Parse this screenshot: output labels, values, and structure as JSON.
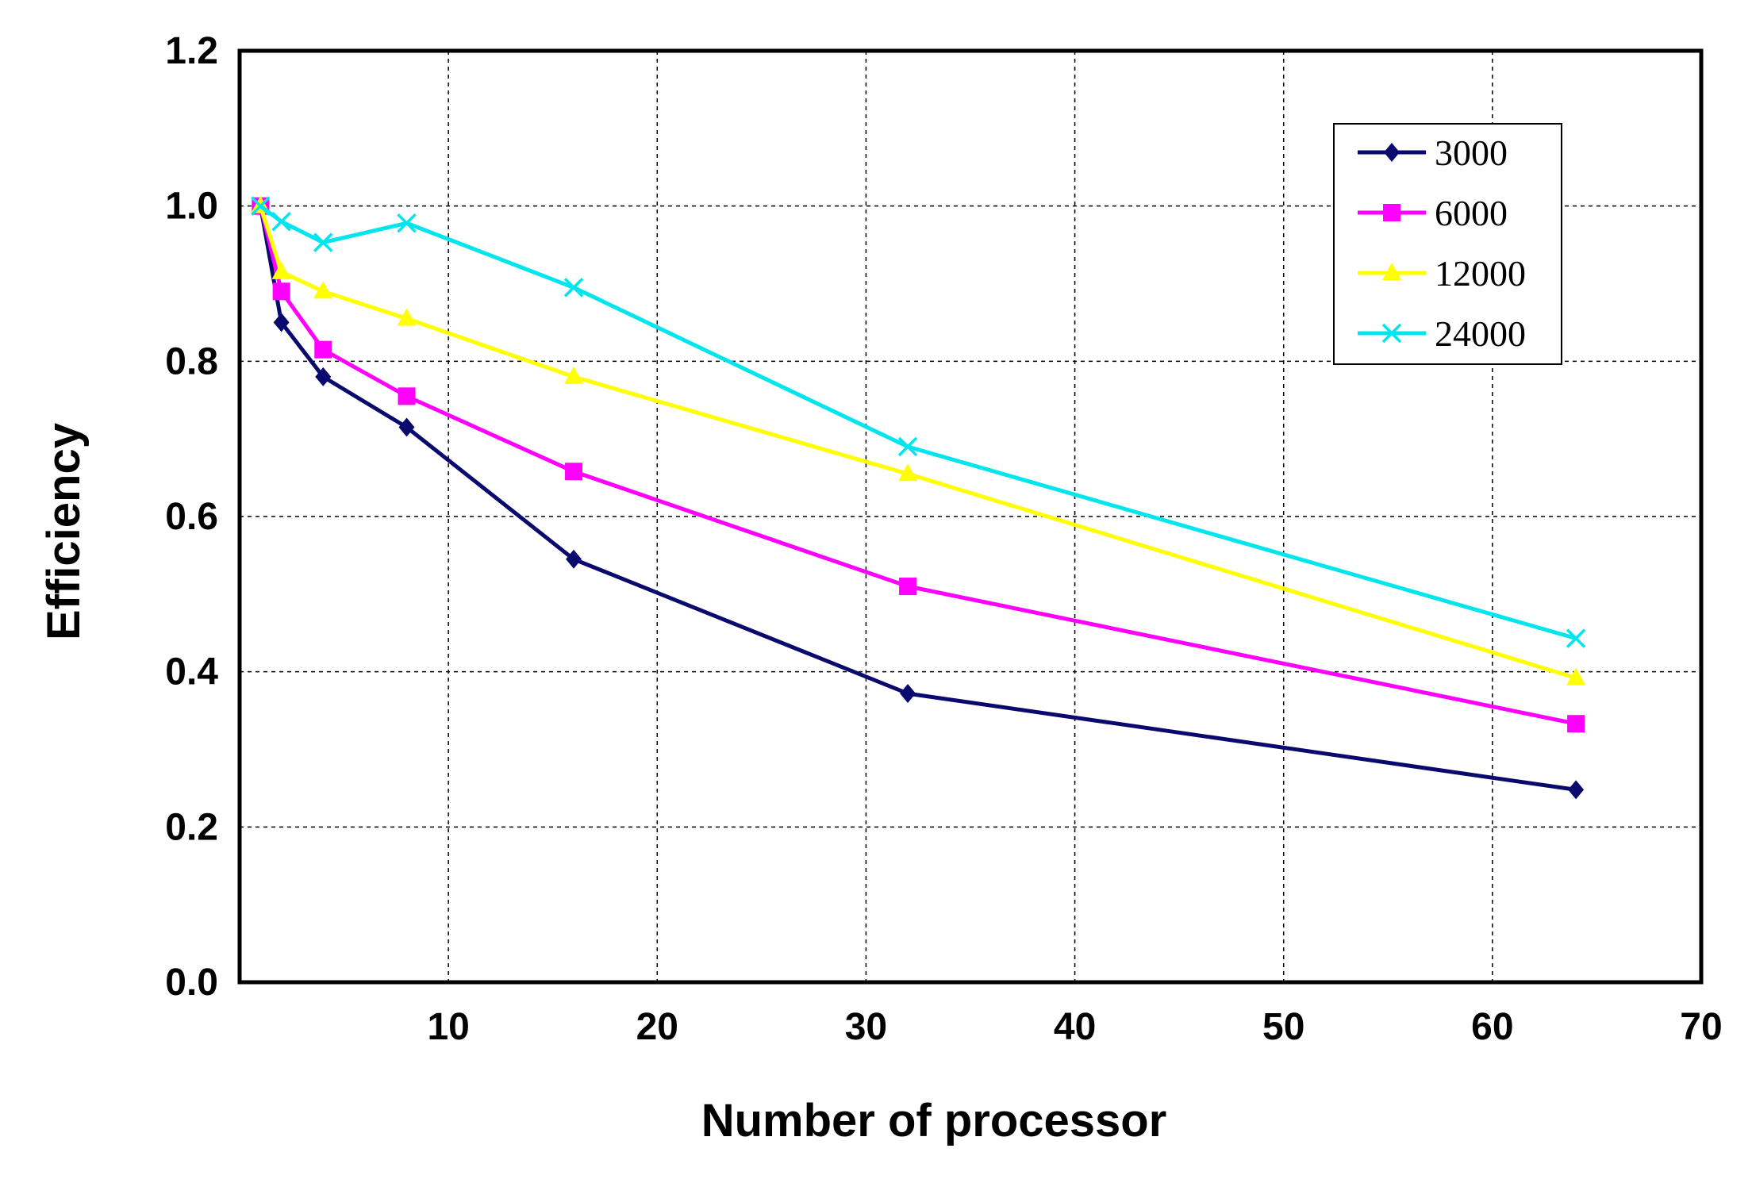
{
  "chart_data": {
    "type": "line",
    "title": "",
    "xlabel": "Number of processor",
    "ylabel": "Efficiency",
    "xlim": [
      0,
      70
    ],
    "ylim": [
      0,
      1.2
    ],
    "xticks": [
      10,
      20,
      30,
      40,
      50,
      60,
      70
    ],
    "xtick_labels": [
      "10",
      "20",
      "30",
      "40",
      "50",
      "60",
      "70"
    ],
    "yticks": [
      0,
      0.2,
      0.4,
      0.6,
      0.8,
      1.0,
      1.2
    ],
    "ytick_labels": [
      "0.0",
      "0.2",
      "0.4",
      "0.6",
      "0.8",
      "1.0",
      "1.2"
    ],
    "grid": true,
    "legend_position": "top-right",
    "x": [
      1,
      2,
      4,
      8,
      16,
      32,
      64
    ],
    "series": [
      {
        "name": "3000",
        "color": "#0a0a6e",
        "marker": "diamond",
        "values": [
          1.0,
          0.85,
          0.78,
          0.715,
          0.545,
          0.372,
          0.248
        ]
      },
      {
        "name": "6000",
        "color": "#ff00ff",
        "marker": "square",
        "values": [
          1.0,
          0.89,
          0.815,
          0.755,
          0.658,
          0.51,
          0.333
        ]
      },
      {
        "name": "12000",
        "color": "#ffff00",
        "marker": "triangle",
        "values": [
          1.0,
          0.915,
          0.89,
          0.855,
          0.78,
          0.655,
          0.392
        ]
      },
      {
        "name": "24000",
        "color": "#00e5ee",
        "marker": "cross",
        "values": [
          1.0,
          0.98,
          0.953,
          0.978,
          0.895,
          0.69,
          0.443
        ]
      }
    ]
  }
}
